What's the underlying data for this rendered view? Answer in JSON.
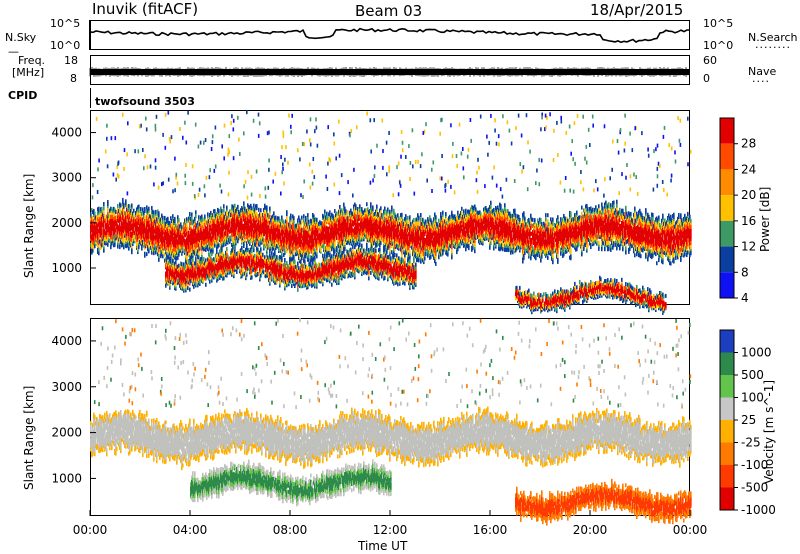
{
  "header": {
    "station": "Inuvik (fitACF)",
    "beam": "Beam 03",
    "date": "18/Apr/2015"
  },
  "panels": {
    "nsky": {
      "label": "N.Sky",
      "yticks": [
        "10^5",
        "10^0"
      ],
      "right_label": "N.Search",
      "right_ticks": [
        "10^5",
        "10^0"
      ]
    },
    "freq": {
      "label_line1": "Freq.",
      "label_line2": "[MHz]",
      "yticks": [
        "18",
        "8"
      ],
      "right_label": "Nave",
      "right_ticks": [
        "60",
        "0"
      ]
    },
    "cpid": {
      "label": "CPID",
      "value": "twofsound 3503"
    }
  },
  "chart_data": [
    {
      "type": "heatmap",
      "parameter": "power",
      "ylabel": "Slant Range [km]",
      "ylim": [
        180,
        4500
      ],
      "yticks": [
        1000,
        2000,
        3000,
        4000
      ],
      "colorbar_label": "Power [dB]",
      "colorbar_ticks": [
        "28",
        "24",
        "20",
        "16",
        "12",
        "8",
        "4"
      ],
      "colorbar_colors": [
        "#e20000",
        "#ff4a00",
        "#ff8c00",
        "#ffc000",
        "#3e9a64",
        "#0a3fa0",
        "#1010f5"
      ],
      "scatter_bands_hours_km": [
        {
          "start_h": 0,
          "end_h": 24,
          "center_km": 1800,
          "halfwidth_km": 450,
          "level_db": 24
        },
        {
          "start_h": 3,
          "end_h": 13,
          "center_km": 1000,
          "halfwidth_km": 280,
          "level_db": 22
        },
        {
          "start_h": 17,
          "end_h": 23,
          "center_km": 400,
          "halfwidth_km": 180,
          "level_db": 26
        }
      ]
    },
    {
      "type": "heatmap",
      "parameter": "velocity",
      "xlabel": "Time UT",
      "xticks": [
        "00:00",
        "04:00",
        "08:00",
        "12:00",
        "16:00",
        "20:00",
        "00:00"
      ],
      "ylabel": "Slant Range [km]",
      "ylim": [
        180,
        4500
      ],
      "yticks": [
        1000,
        2000,
        3000,
        4000
      ],
      "colorbar_label": "Velocity [m s^-1]",
      "colorbar_ticks": [
        "1000",
        "500",
        "100",
        "25",
        "-25",
        "-100",
        "-500",
        "-1000"
      ],
      "colorbar_colors": [
        "#1d3fbf",
        "#2e8a4a",
        "#62c44a",
        "#c7c7c7",
        "#ffb000",
        "#ff7a00",
        "#ff3a00",
        "#e00000"
      ],
      "ground_scatter_color": "#c0c0bc",
      "scatter_bands_hours_km": [
        {
          "start_h": 0,
          "end_h": 24,
          "center_km": 1900,
          "halfwidth_km": 400,
          "level_ms": 0
        },
        {
          "start_h": 4,
          "end_h": 12,
          "center_km": 900,
          "halfwidth_km": 250,
          "level_ms": 250
        },
        {
          "start_h": 17,
          "end_h": 24,
          "center_km": 500,
          "halfwidth_km": 250,
          "level_ms": -300
        }
      ]
    }
  ]
}
